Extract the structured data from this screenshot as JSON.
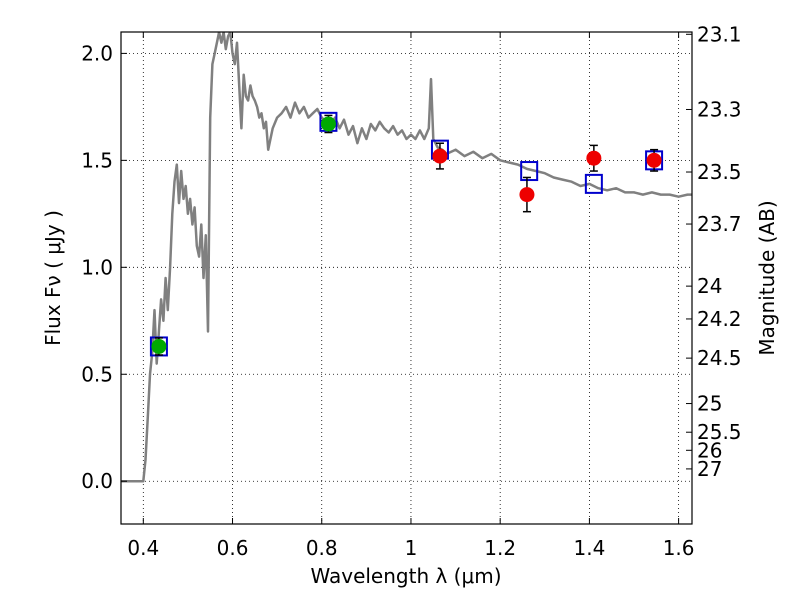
{
  "chart_data": {
    "type": "line",
    "xlabel": "Wavelength  λ (μm)",
    "ylabel": "Flux  Fν ( μJy )",
    "y2label": "Magnitude (AB)",
    "xlim": [
      0.35,
      1.63
    ],
    "ylim": [
      -0.2,
      2.1
    ],
    "grid": true,
    "x_ticks": [
      "0.4",
      "0.6",
      "0.8",
      "1",
      "1.2",
      "1.4",
      "1.6"
    ],
    "y_ticks": [
      "0.0",
      "0.5",
      "1.0",
      "1.5",
      "2.0"
    ],
    "mag_ticks": [
      "23.1",
      "23.3",
      "23.5",
      "23.7",
      "24",
      "24.2",
      "24.5",
      "25",
      "25.5",
      "26",
      "27"
    ],
    "series": [
      {
        "kind": "template",
        "color": "#808080",
        "x": [
          0.35,
          0.4,
          0.405,
          0.41,
          0.415,
          0.42,
          0.425,
          0.43,
          0.435,
          0.44,
          0.445,
          0.45,
          0.455,
          0.46,
          0.465,
          0.47,
          0.475,
          0.48,
          0.485,
          0.49,
          0.495,
          0.5,
          0.505,
          0.51,
          0.515,
          0.52,
          0.525,
          0.53,
          0.535,
          0.54,
          0.545,
          0.55,
          0.555,
          0.56,
          0.565,
          0.57,
          0.575,
          0.58,
          0.585,
          0.59,
          0.595,
          0.6,
          0.605,
          0.61,
          0.615,
          0.62,
          0.625,
          0.63,
          0.635,
          0.64,
          0.645,
          0.65,
          0.655,
          0.66,
          0.665,
          0.67,
          0.675,
          0.68,
          0.69,
          0.7,
          0.71,
          0.72,
          0.73,
          0.74,
          0.75,
          0.76,
          0.77,
          0.78,
          0.79,
          0.8,
          0.81,
          0.82,
          0.83,
          0.84,
          0.85,
          0.86,
          0.87,
          0.88,
          0.89,
          0.9,
          0.91,
          0.92,
          0.93,
          0.94,
          0.95,
          0.96,
          0.97,
          0.98,
          0.99,
          1.0,
          1.01,
          1.02,
          1.03,
          1.04,
          1.045,
          1.05,
          1.055,
          1.06,
          1.07,
          1.08,
          1.1,
          1.12,
          1.14,
          1.16,
          1.18,
          1.2,
          1.22,
          1.24,
          1.26,
          1.28,
          1.3,
          1.32,
          1.34,
          1.36,
          1.38,
          1.4,
          1.42,
          1.44,
          1.46,
          1.48,
          1.5,
          1.52,
          1.54,
          1.56,
          1.58,
          1.6,
          1.62,
          1.63
        ],
        "y": [
          0.0,
          0.0,
          0.1,
          0.3,
          0.5,
          0.6,
          0.8,
          0.55,
          0.7,
          0.85,
          0.75,
          0.95,
          0.8,
          1.0,
          1.25,
          1.4,
          1.48,
          1.3,
          1.45,
          1.32,
          1.38,
          1.25,
          1.32,
          1.2,
          1.28,
          1.1,
          1.05,
          1.2,
          0.95,
          1.15,
          0.7,
          1.7,
          1.95,
          2.0,
          2.05,
          2.1,
          2.05,
          2.1,
          2.02,
          2.08,
          2.1,
          2.0,
          1.95,
          2.05,
          1.85,
          1.65,
          1.9,
          1.8,
          1.78,
          1.85,
          1.8,
          1.78,
          1.75,
          1.7,
          1.72,
          1.65,
          1.68,
          1.55,
          1.65,
          1.7,
          1.72,
          1.75,
          1.7,
          1.77,
          1.72,
          1.75,
          1.7,
          1.72,
          1.74,
          1.7,
          1.68,
          1.67,
          1.7,
          1.65,
          1.69,
          1.62,
          1.66,
          1.58,
          1.65,
          1.6,
          1.67,
          1.64,
          1.68,
          1.65,
          1.63,
          1.66,
          1.62,
          1.64,
          1.6,
          1.62,
          1.6,
          1.64,
          1.6,
          1.65,
          1.88,
          1.6,
          1.58,
          1.56,
          1.55,
          1.53,
          1.55,
          1.52,
          1.54,
          1.51,
          1.53,
          1.5,
          1.49,
          1.48,
          1.46,
          1.45,
          1.44,
          1.42,
          1.41,
          1.4,
          1.38,
          1.39,
          1.37,
          1.36,
          1.37,
          1.35,
          1.35,
          1.34,
          1.35,
          1.34,
          1.34,
          1.33,
          1.34,
          1.34
        ]
      },
      {
        "kind": "model-boxes",
        "color": "#0000cc",
        "x": [
          0.435,
          0.815,
          1.065,
          1.265,
          1.41,
          1.545
        ],
        "y": [
          0.63,
          1.68,
          1.55,
          1.45,
          1.39,
          1.5
        ]
      },
      {
        "kind": "detections",
        "x": [
          0.435,
          0.815,
          1.065,
          1.26,
          1.41,
          1.545
        ],
        "y": [
          0.63,
          1.67,
          1.52,
          1.34,
          1.51,
          1.5
        ],
        "yerr": [
          0.04,
          0.04,
          0.06,
          0.08,
          0.06,
          0.05
        ],
        "colors": [
          "#00aa00",
          "#00aa00",
          "#ee0000",
          "#ee0000",
          "#ee0000",
          "#ee0000"
        ]
      }
    ]
  }
}
